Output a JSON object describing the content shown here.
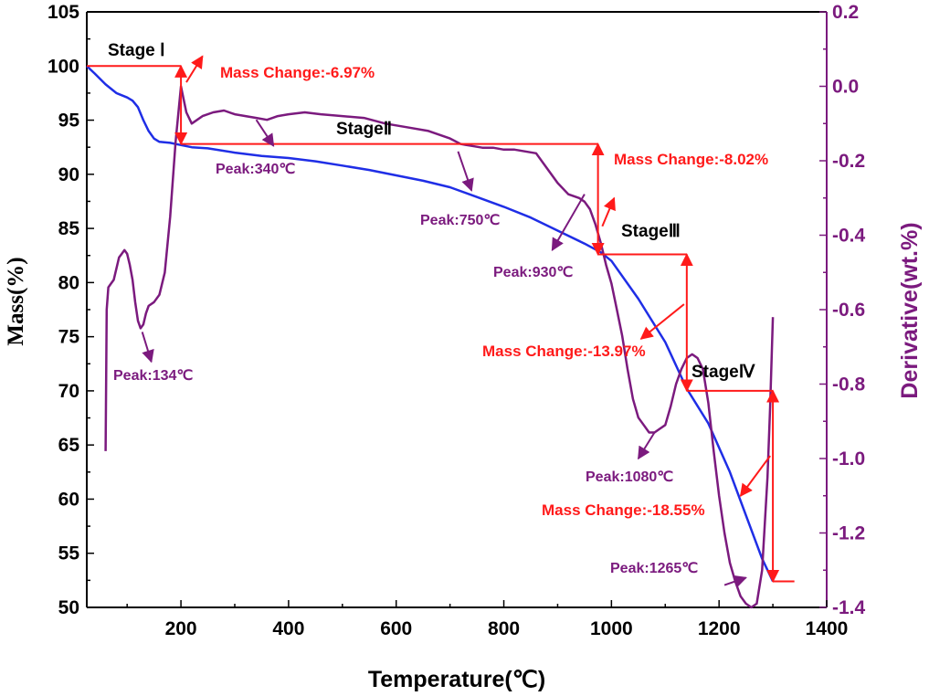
{
  "chart_data": {
    "type": "line",
    "xlabel": "Temperature(℃)",
    "ylabel": "Mass(%)",
    "y2label": "Derivative(wt.%)",
    "xlim": [
      25,
      1400
    ],
    "ylim": [
      50,
      105
    ],
    "y2lim": [
      -1.4,
      0.2
    ],
    "xticks": [
      200,
      400,
      600,
      800,
      1000,
      1200,
      1400
    ],
    "yticks": [
      50,
      55,
      60,
      65,
      70,
      75,
      80,
      85,
      90,
      95,
      100,
      105
    ],
    "y2ticks": [
      -1.4,
      -1.2,
      -1.0,
      -0.8,
      -0.6,
      -0.4,
      -0.2,
      0.0,
      0.2
    ],
    "y2tick_labels": [
      "-1.4",
      "-1.2",
      "-1.0",
      "-0.8",
      "-0.6",
      "-0.4",
      "-0.2",
      "0.0",
      "0.2"
    ],
    "series": [
      {
        "color": "#1f2ee6",
        "axis": "left",
        "x": [
          25,
          40,
          60,
          80,
          100,
          110,
          120,
          130,
          140,
          150,
          160,
          180,
          200,
          220,
          250,
          300,
          350,
          400,
          450,
          500,
          550,
          600,
          650,
          700,
          750,
          800,
          850,
          900,
          950,
          980,
          1000,
          1050,
          1100,
          1140,
          1180,
          1220,
          1250,
          1280,
          1300
        ],
        "values": [
          100,
          99.3,
          98.3,
          97.5,
          97.1,
          96.8,
          96.2,
          95.0,
          94.0,
          93.3,
          93.0,
          92.9,
          92.7,
          92.5,
          92.4,
          92.0,
          91.7,
          91.5,
          91.2,
          90.8,
          90.4,
          89.9,
          89.4,
          88.8,
          87.9,
          87.0,
          86.0,
          84.8,
          83.6,
          82.8,
          82.0,
          78.5,
          74.5,
          70.2,
          67.0,
          62.5,
          58.5,
          54.5,
          52.4
        ]
      },
      {
        "color": "#7b1a7e",
        "axis": "right",
        "x": [
          60,
          62,
          65,
          70,
          75,
          80,
          85,
          90,
          95,
          100,
          105,
          110,
          115,
          120,
          125,
          130,
          135,
          140,
          150,
          160,
          170,
          180,
          190,
          200,
          210,
          220,
          240,
          260,
          280,
          300,
          320,
          340,
          360,
          380,
          400,
          430,
          460,
          500,
          540,
          580,
          620,
          660,
          700,
          720,
          740,
          760,
          780,
          800,
          820,
          840,
          860,
          880,
          900,
          920,
          940,
          950,
          960,
          970,
          980,
          990,
          1000,
          1010,
          1020,
          1030,
          1040,
          1050,
          1060,
          1070,
          1080,
          1090,
          1100,
          1110,
          1120,
          1130,
          1140,
          1150,
          1160,
          1170,
          1180,
          1190,
          1200,
          1210,
          1220,
          1230,
          1240,
          1250,
          1260,
          1270,
          1280,
          1290,
          1295,
          1300
        ],
        "values": [
          -0.98,
          -0.6,
          -0.54,
          -0.53,
          -0.52,
          -0.49,
          -0.46,
          -0.45,
          -0.44,
          -0.45,
          -0.48,
          -0.52,
          -0.58,
          -0.63,
          -0.65,
          -0.64,
          -0.61,
          -0.59,
          -0.58,
          -0.56,
          -0.5,
          -0.35,
          -0.15,
          0.0,
          -0.07,
          -0.1,
          -0.08,
          -0.07,
          -0.065,
          -0.075,
          -0.08,
          -0.085,
          -0.09,
          -0.08,
          -0.075,
          -0.07,
          -0.075,
          -0.08,
          -0.085,
          -0.1,
          -0.11,
          -0.12,
          -0.14,
          -0.155,
          -0.16,
          -0.165,
          -0.165,
          -0.17,
          -0.17,
          -0.175,
          -0.18,
          -0.22,
          -0.26,
          -0.29,
          -0.3,
          -0.31,
          -0.33,
          -0.37,
          -0.42,
          -0.48,
          -0.53,
          -0.6,
          -0.67,
          -0.76,
          -0.84,
          -0.89,
          -0.91,
          -0.93,
          -0.93,
          -0.92,
          -0.91,
          -0.86,
          -0.8,
          -0.76,
          -0.73,
          -0.72,
          -0.73,
          -0.76,
          -0.85,
          -0.98,
          -1.1,
          -1.2,
          -1.28,
          -1.33,
          -1.37,
          -1.39,
          -1.4,
          -1.39,
          -1.3,
          -1.05,
          -0.86,
          -0.62
        ]
      }
    ],
    "annotations": {
      "stages": [
        "Stage Ⅰ",
        "StageⅡ",
        "StageⅢ",
        "StageⅣ"
      ],
      "mass_changes": [
        "Mass Change:-6.97%",
        "Mass Change:-8.02%",
        "Mass Change:-13.97%",
        "Mass Change:-18.55%"
      ],
      "peaks": [
        "Peak:134℃",
        "Peak:340℃",
        "Peak:750℃",
        "Peak:930℃",
        "Peak:1080℃",
        "Peak:1265℃"
      ]
    },
    "annotation_colors": {
      "mass_bracket": "#ff1a1a",
      "derivative": "#7b1a7e",
      "mass": "#1f2ee6"
    }
  }
}
